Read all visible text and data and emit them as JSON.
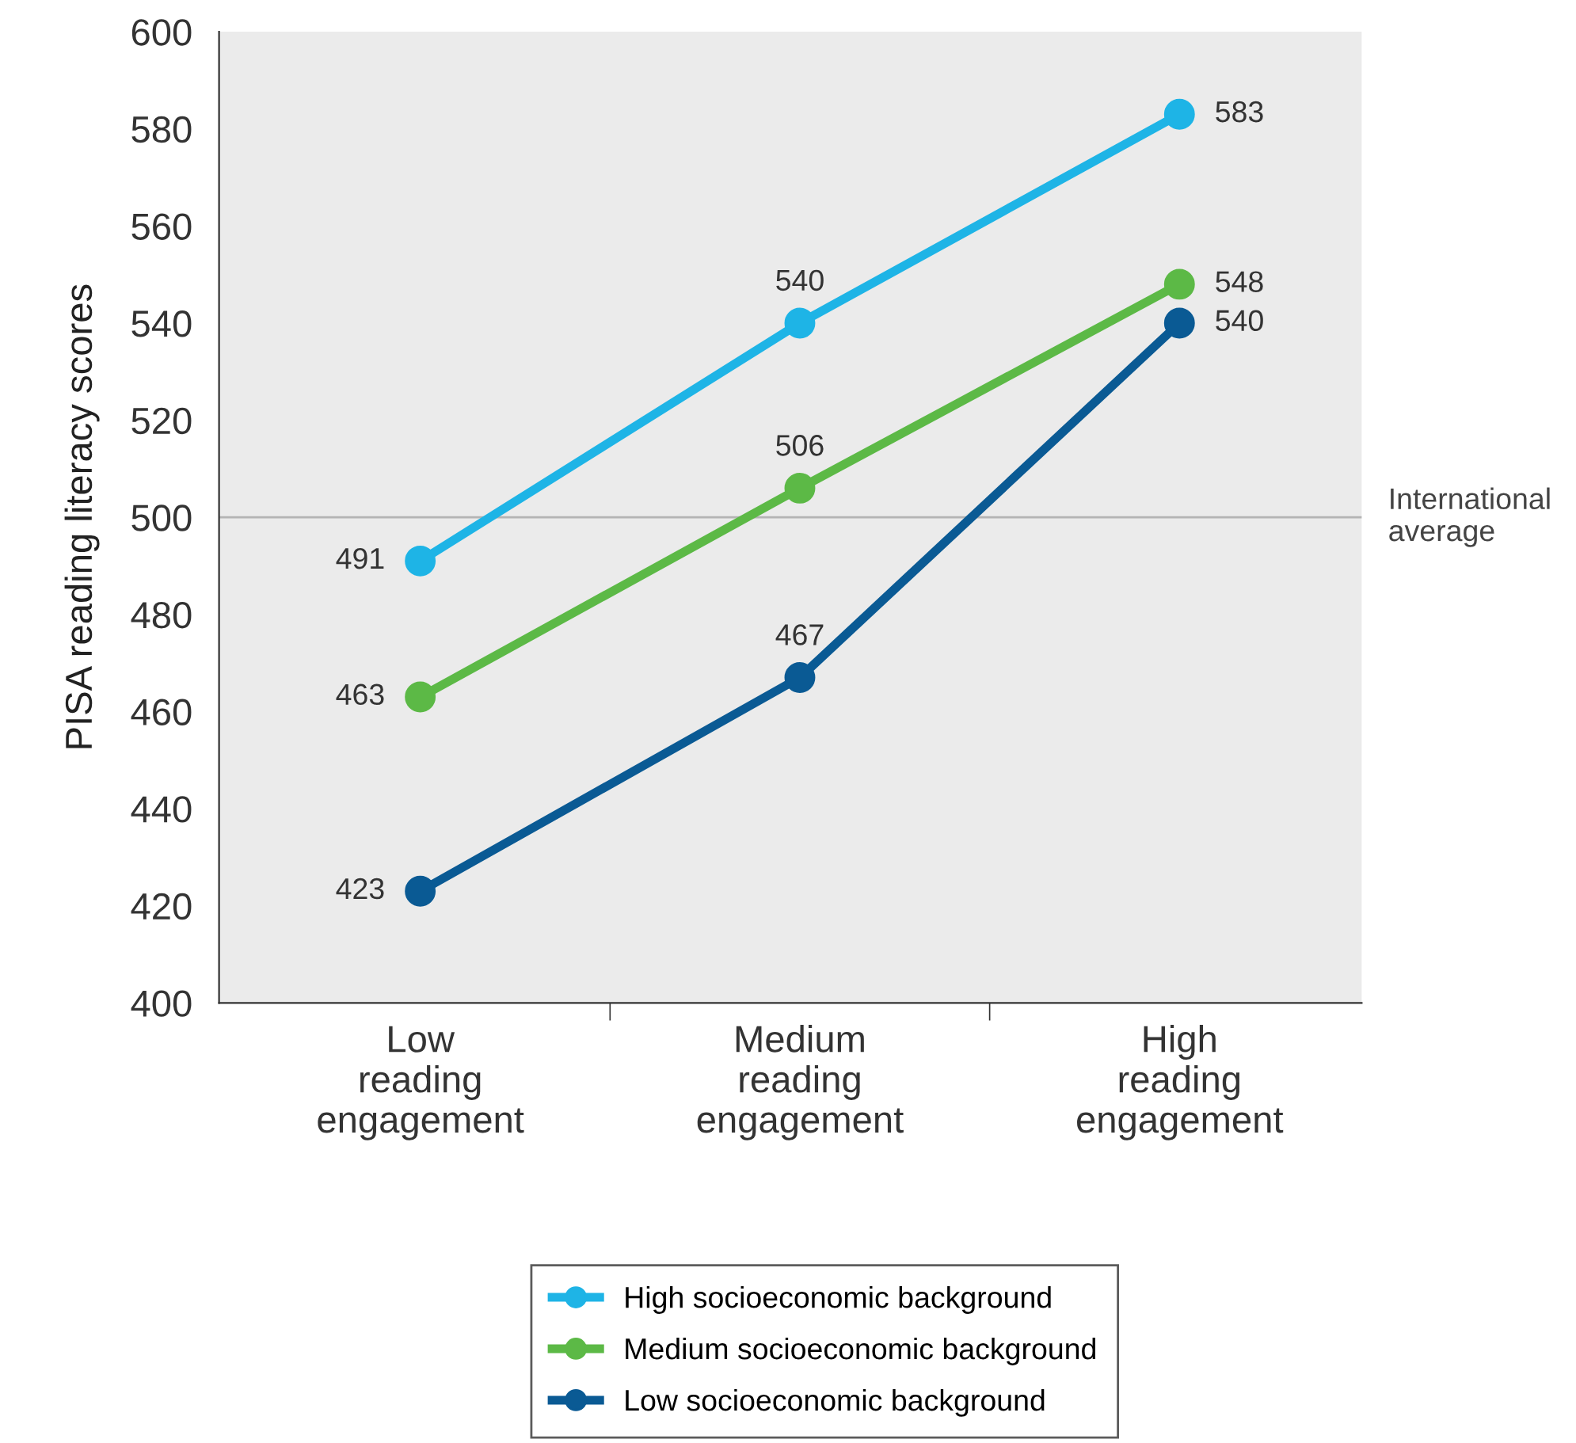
{
  "chart_data": {
    "type": "line",
    "ylabel": "PISA reading literacy scores",
    "categories": [
      "Low\nreading\nengagement",
      "Medium\nreading\nengagement",
      "High\nreading\nengagement"
    ],
    "series": [
      {
        "name": "High socioeconomic background",
        "color": "#1eb4e6",
        "values": [
          491,
          540,
          583
        ]
      },
      {
        "name": "Medium socioeconomic background",
        "color": "#5cb946",
        "values": [
          463,
          506,
          548
        ]
      },
      {
        "name": "Low socioeconomic background",
        "color": "#0a5a94",
        "values": [
          423,
          467,
          540
        ]
      }
    ],
    "ylim": [
      400,
      600
    ],
    "yticks": [
      400,
      420,
      440,
      460,
      480,
      500,
      520,
      540,
      560,
      580,
      600
    ],
    "ref_lines": [
      {
        "axis": "y",
        "value": 500,
        "label": "International\naverage",
        "color": "#b4b4b4"
      }
    ],
    "data_labels": true,
    "marker": "circle",
    "line_style": "solid",
    "legend": "bottom",
    "grid": false
  }
}
